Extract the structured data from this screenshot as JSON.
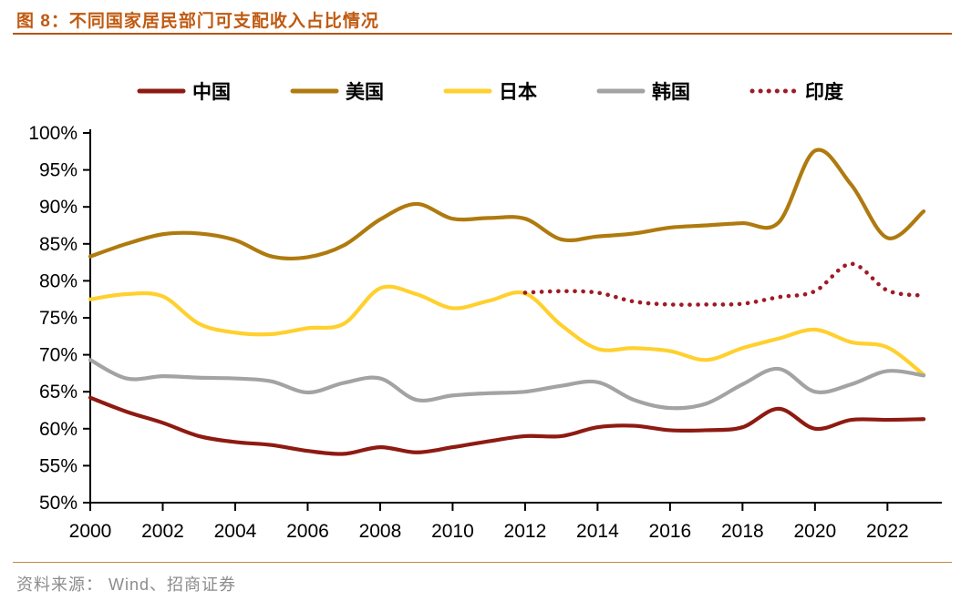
{
  "header": {
    "title": "图 8：不同国家居民部门可支配收入占比情况"
  },
  "footer": {
    "source": "资料来源： Wind、招商证券"
  },
  "chart_data": {
    "type": "line",
    "title": "不同国家居民部门可支配收入占比情况",
    "xlabel": "",
    "ylabel": "",
    "ylim": [
      50,
      100
    ],
    "y_tick_step": 5,
    "y_tick_suffix": "%",
    "grid": false,
    "legend_position": "top",
    "x": [
      2000,
      2001,
      2002,
      2003,
      2004,
      2005,
      2006,
      2007,
      2008,
      2009,
      2010,
      2011,
      2012,
      2013,
      2014,
      2015,
      2016,
      2017,
      2018,
      2019,
      2020,
      2021,
      2022,
      2023
    ],
    "x_tick_labels": [
      "2000",
      "2002",
      "2004",
      "2006",
      "2008",
      "2010",
      "2012",
      "2014",
      "2016",
      "2018",
      "2020",
      "2022"
    ],
    "series": [
      {
        "name": "中国",
        "key": "china",
        "color": "#8E1A12",
        "style": "solid",
        "values": [
          64.2,
          62.3,
          60.8,
          59.0,
          58.2,
          57.8,
          57.0,
          56.6,
          57.5,
          56.8,
          57.5,
          58.3,
          59.0,
          59.0,
          60.2,
          60.4,
          59.8,
          59.8,
          60.2,
          62.7,
          60.0,
          61.2,
          61.2,
          61.3
        ]
      },
      {
        "name": "美国",
        "key": "usa",
        "color": "#AF7A0E",
        "style": "solid",
        "values": [
          83.3,
          85.0,
          86.3,
          86.4,
          85.5,
          83.3,
          83.2,
          84.8,
          88.3,
          90.4,
          88.4,
          88.5,
          88.4,
          85.6,
          86.0,
          86.4,
          87.2,
          87.5,
          87.8,
          87.9,
          97.6,
          93.0,
          85.8,
          89.4
        ]
      },
      {
        "name": "日本",
        "key": "japan",
        "color": "#FFD02E",
        "style": "solid",
        "values": [
          77.5,
          78.2,
          77.9,
          74.2,
          73.0,
          72.8,
          73.6,
          74.2,
          79.0,
          78.2,
          76.3,
          77.3,
          78.3,
          74.0,
          70.8,
          70.9,
          70.5,
          69.3,
          70.9,
          72.2,
          73.4,
          71.7,
          71.0,
          67.3
        ]
      },
      {
        "name": "韩国",
        "key": "korea",
        "color": "#A3A3A3",
        "style": "solid",
        "values": [
          69.3,
          66.8,
          67.1,
          66.9,
          66.8,
          66.4,
          64.9,
          66.2,
          66.8,
          63.9,
          64.5,
          64.8,
          65.0,
          65.8,
          66.3,
          63.9,
          62.8,
          63.4,
          66.0,
          68.1,
          65.0,
          66.0,
          67.8,
          67.2
        ]
      },
      {
        "name": "印度",
        "key": "india",
        "color": "#9E1B26",
        "style": "dotted",
        "values": [
          null,
          null,
          null,
          null,
          null,
          null,
          null,
          null,
          null,
          null,
          null,
          null,
          78.4,
          78.6,
          78.4,
          77.2,
          76.8,
          76.8,
          76.9,
          77.8,
          78.6,
          82.3,
          78.7,
          78.0
        ]
      }
    ]
  }
}
